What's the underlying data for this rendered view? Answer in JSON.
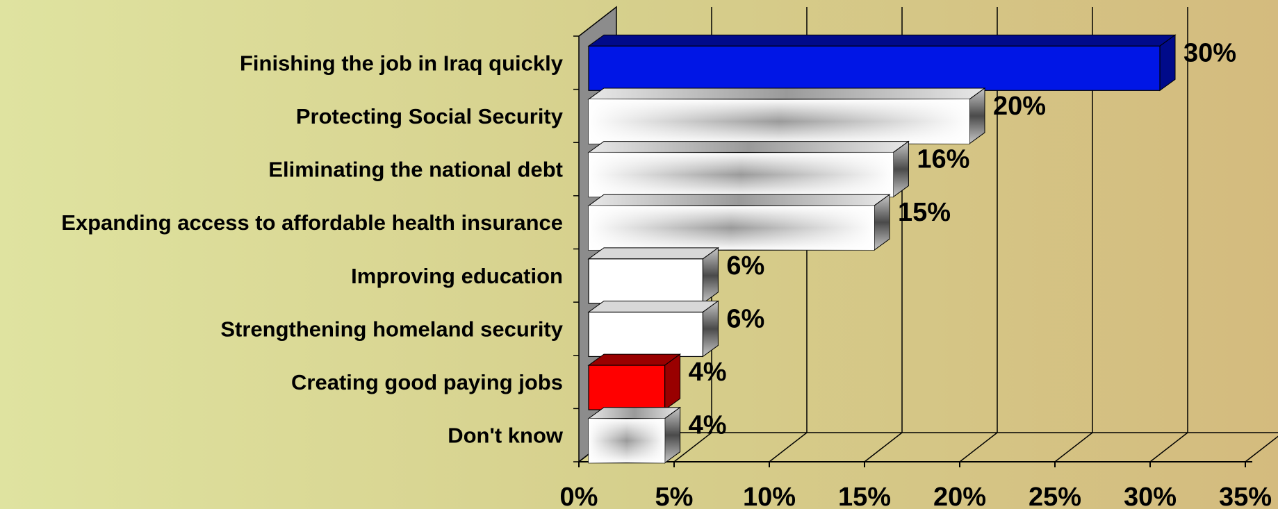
{
  "chart_data": {
    "type": "bar",
    "orientation": "horizontal",
    "categories": [
      "Finishing the job in Iraq quickly",
      "Protecting Social Security",
      "Eliminating the national debt",
      "Expanding access to affordable health insurance",
      "Improving education",
      "Strengthening homeland security",
      "Creating good paying jobs",
      "Don't know"
    ],
    "values": [
      30,
      20,
      16,
      15,
      6,
      6,
      4,
      4
    ],
    "value_labels": [
      "30%",
      "20%",
      "16%",
      "15%",
      "6%",
      "6%",
      "4%",
      "4%"
    ],
    "x_ticks": [
      "0%",
      "5%",
      "10%",
      "15%",
      "20%",
      "25%",
      "30%",
      "35%"
    ],
    "xlim": [
      0,
      35
    ],
    "grid": true,
    "style": "3d",
    "bar_fills": [
      "blue",
      "white-gradient",
      "white-gradient",
      "white-gradient",
      "white",
      "white",
      "red",
      "white-gradient"
    ],
    "colors": {
      "blue": "#0016e6",
      "blue_dark": "#000a8a",
      "red": "#ff0000",
      "red_dark": "#990000"
    }
  }
}
